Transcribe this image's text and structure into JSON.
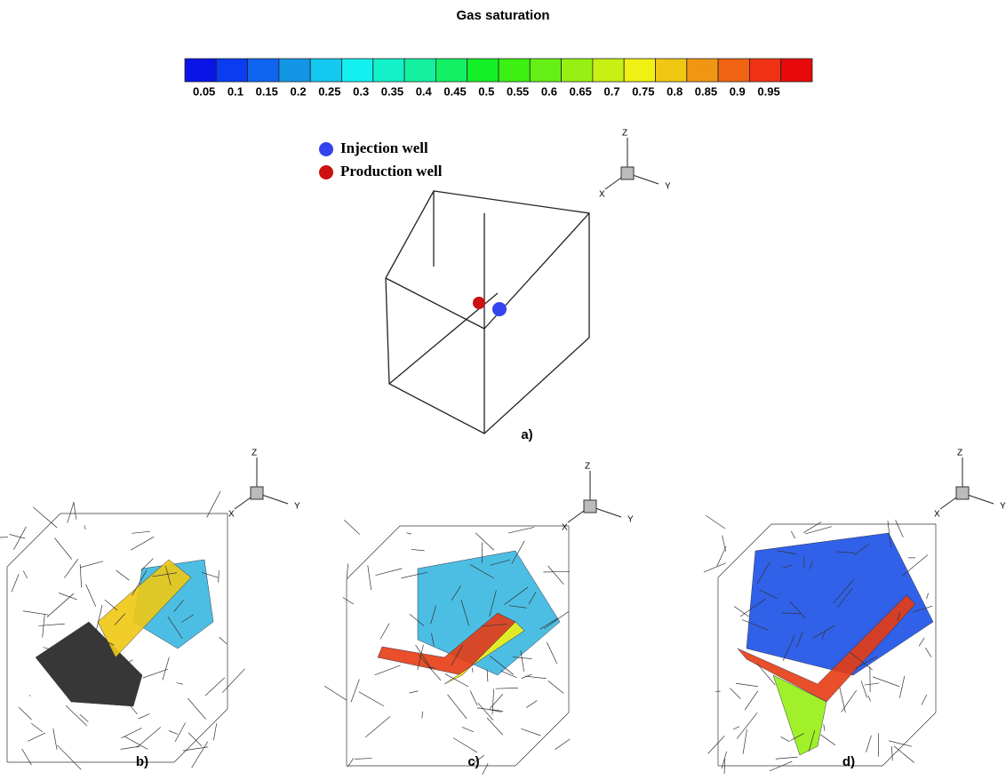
{
  "title": "Gas saturation",
  "colorbar": {
    "ticks": [
      0.05,
      0.1,
      0.15,
      0.2,
      0.25,
      0.3,
      0.35,
      0.4,
      0.45,
      0.5,
      0.55,
      0.6,
      0.65,
      0.7,
      0.75,
      0.8,
      0.85,
      0.9,
      0.95
    ],
    "colors": [
      "#0a14e6",
      "#0a3cf0",
      "#0f64f0",
      "#1496e6",
      "#14c8f0",
      "#14f0f0",
      "#14f0c8",
      "#14f0a0",
      "#14f064",
      "#14f028",
      "#3cf014",
      "#64f014",
      "#96f014",
      "#c8f014",
      "#f0f014",
      "#f0c814",
      "#f09614",
      "#f06414",
      "#f03214",
      "#e60a0a"
    ]
  },
  "legend": [
    {
      "label": "Injection well",
      "color": "#3344ee"
    },
    {
      "label": "Production well",
      "color": "#cc1111"
    }
  ],
  "triads": [
    {
      "z": "Z",
      "x": "X",
      "y": "Y"
    },
    {
      "z": "Z",
      "x": "X",
      "y": "Y"
    },
    {
      "z": "Z",
      "x": "X",
      "y": "Y"
    },
    {
      "z": "Z",
      "x": "X",
      "y": "Y"
    }
  ],
  "panels": [
    "a)",
    "b)",
    "c)",
    "d)"
  ]
}
